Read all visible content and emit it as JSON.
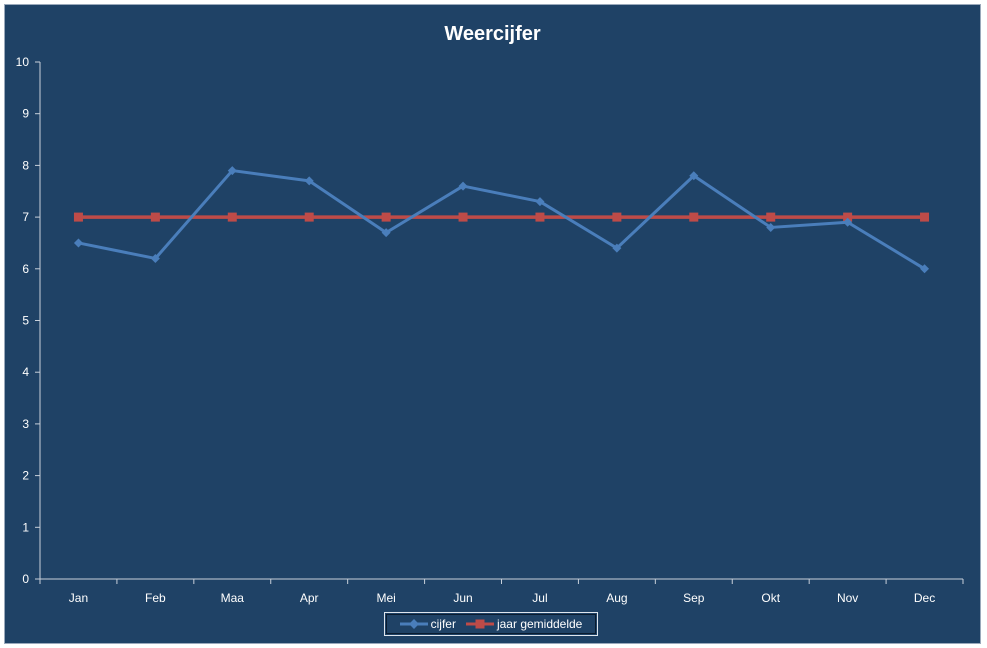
{
  "chart_data": {
    "type": "line",
    "title": "Weercijfer",
    "xlabel": "",
    "ylabel": "",
    "categories": [
      "Jan",
      "Feb",
      "Maa",
      "Apr",
      "Mei",
      "Jun",
      "Jul",
      "Aug",
      "Sep",
      "Okt",
      "Nov",
      "Dec"
    ],
    "ylim": [
      0,
      10
    ],
    "yticks": [
      0,
      1,
      2,
      3,
      4,
      5,
      6,
      7,
      8,
      9,
      10
    ],
    "grid": false,
    "legend_position": "bottom",
    "series": [
      {
        "name": "cijfer",
        "color": "#4a7ebb",
        "marker": "diamond",
        "values": [
          6.5,
          6.2,
          7.9,
          7.7,
          6.7,
          7.6,
          7.3,
          6.4,
          7.8,
          6.8,
          6.9,
          6.0
        ]
      },
      {
        "name": "jaar gemiddelde",
        "color": "#be4b48",
        "marker": "square",
        "values": [
          7,
          7,
          7,
          7,
          7,
          7,
          7,
          7,
          7,
          7,
          7,
          7
        ]
      }
    ]
  }
}
